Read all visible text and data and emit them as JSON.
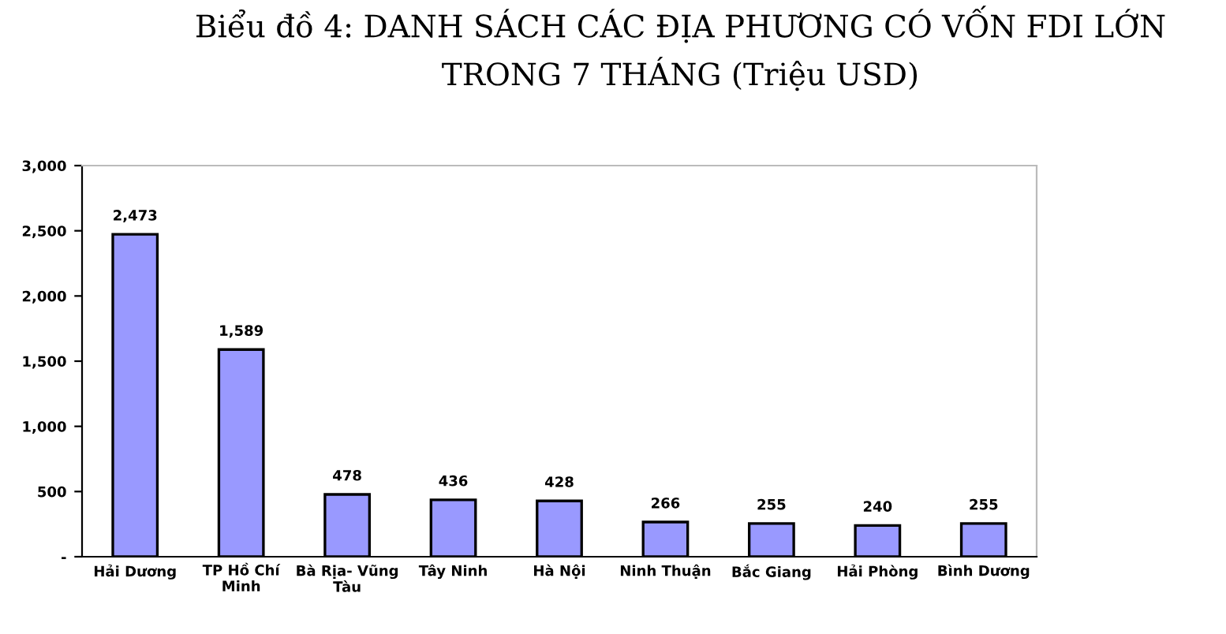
{
  "chart_data": {
    "type": "bar",
    "title": "Biểu đồ 4: DANH SÁCH CÁC ĐỊA PHƯƠNG CÓ VỐN FDI LỚN\nTRONG 7 THÁNG (Triệu USD)",
    "categories": [
      "Hải Dương",
      "TP Hồ Chí\nMinh",
      "Bà Rịa- Vũng\nTàu",
      "Tây Ninh",
      "Hà Nội",
      "Ninh Thuận",
      "Bắc Giang",
      "Hải Phòng",
      "Bình Dương"
    ],
    "values": [
      2473,
      1589,
      478,
      436,
      428,
      266,
      255,
      240,
      255
    ],
    "value_labels": [
      "2,473",
      "1,589",
      "478",
      "436",
      "428",
      "266",
      "255",
      "240",
      "255"
    ],
    "color": "#9999ff",
    "ylim": [
      0,
      3000
    ],
    "yticks": [
      {
        "value": 0,
        "label": "-"
      },
      500,
      {
        "value": 1000,
        "label": "1,000"
      },
      {
        "value": 1500,
        "label": "1,500"
      },
      {
        "value": 2000,
        "label": "2,000"
      },
      {
        "value": 2500,
        "label": "2,500"
      },
      {
        "value": 3000,
        "label": "3,000"
      }
    ],
    "grid": false,
    "legend": false
  }
}
